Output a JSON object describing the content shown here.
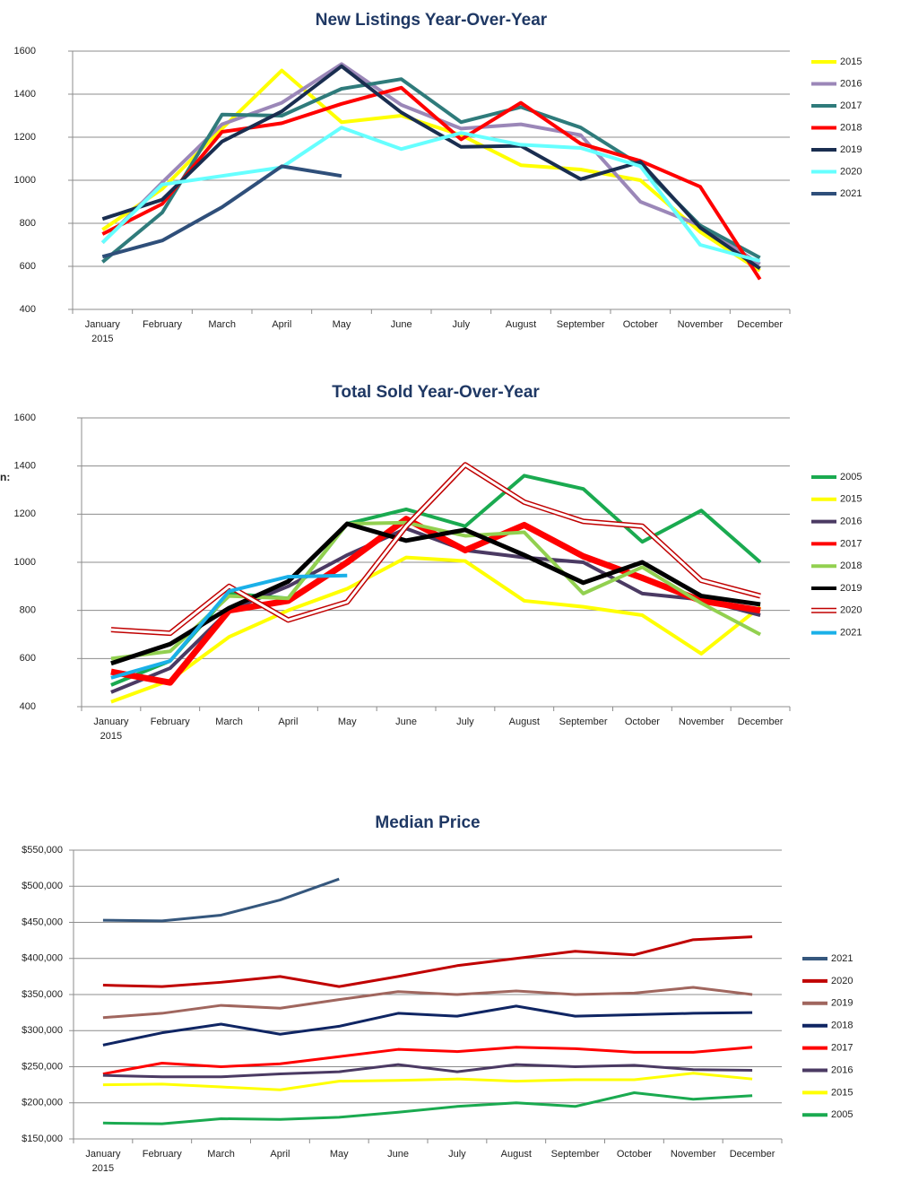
{
  "chart_data": [
    {
      "type": "line",
      "title": "New Listings Year-Over-Year",
      "categories": [
        "January\n2015",
        "February",
        "March",
        "April",
        "May",
        "June",
        "July",
        "August",
        "September",
        "October",
        "November",
        "December"
      ],
      "ylim": [
        400,
        1600
      ],
      "yticks": [
        400,
        600,
        800,
        1000,
        1200,
        1400,
        1600
      ],
      "grid": true,
      "legend": "right",
      "series": [
        {
          "name": "2015",
          "color": "#ffff00",
          "values": [
            770,
            960,
            1240,
            1510,
            1270,
            1300,
            1210,
            1070,
            1050,
            1000,
            760,
            580
          ]
        },
        {
          "name": "2016",
          "color": "#9b87b8",
          "values": [
            710,
            990,
            1260,
            1360,
            1540,
            1350,
            1240,
            1260,
            1210,
            900,
            790,
            610
          ]
        },
        {
          "name": "2017",
          "color": "#2f7b7b",
          "values": [
            620,
            850,
            1305,
            1300,
            1425,
            1470,
            1270,
            1340,
            1245,
            1070,
            790,
            640
          ]
        },
        {
          "name": "2018",
          "color": "#ff0000",
          "values": [
            750,
            890,
            1225,
            1265,
            1355,
            1430,
            1190,
            1360,
            1170,
            1090,
            970,
            540
          ]
        },
        {
          "name": "2019",
          "color": "#1a2e50",
          "values": [
            820,
            910,
            1180,
            1320,
            1530,
            1315,
            1155,
            1160,
            1005,
            1085,
            780,
            590
          ]
        },
        {
          "name": "2020",
          "color": "#66ffff",
          "values": [
            710,
            980,
            1020,
            1060,
            1245,
            1145,
            1220,
            1165,
            1150,
            1065,
            700,
            625
          ]
        },
        {
          "name": "2021",
          "color": "#2f4f7a",
          "values": [
            645,
            720,
            875,
            1065,
            1020,
            null,
            null,
            null,
            null,
            null,
            null,
            null
          ]
        }
      ]
    },
    {
      "type": "line",
      "title": "Total Sold Year-Over-Year",
      "annotation": "n:",
      "categories": [
        "January\n2015",
        "February",
        "March",
        "April",
        "May",
        "June",
        "July",
        "August",
        "September",
        "October",
        "November",
        "December"
      ],
      "ylim": [
        400,
        1600
      ],
      "yticks": [
        400,
        600,
        800,
        1000,
        1200,
        1400,
        1600
      ],
      "grid": true,
      "legend": "right",
      "series": [
        {
          "name": "2005",
          "color": "#1aaa50",
          "values": [
            490,
            590,
            870,
            850,
            1160,
            1220,
            1150,
            1360,
            1305,
            1085,
            1215,
            1000
          ]
        },
        {
          "name": "2015",
          "color": "#ffff00",
          "values": [
            420,
            510,
            690,
            800,
            890,
            1020,
            1005,
            840,
            815,
            780,
            620,
            815
          ]
        },
        {
          "name": "2016",
          "color": "#4b3a63",
          "values": [
            460,
            560,
            800,
            900,
            1030,
            1140,
            1050,
            1020,
            1000,
            870,
            845,
            780
          ]
        },
        {
          "name": "2017",
          "color": "#ff0000",
          "width": 7,
          "values": [
            545,
            500,
            800,
            840,
            1000,
            1180,
            1050,
            1155,
            1025,
            935,
            840,
            800
          ]
        },
        {
          "name": "2018",
          "color": "#92d050",
          "values": [
            600,
            630,
            860,
            850,
            1160,
            1165,
            1110,
            1125,
            870,
            980,
            830,
            700
          ]
        },
        {
          "name": "2019",
          "color": "#000000",
          "width": 5,
          "values": [
            580,
            660,
            810,
            920,
            1160,
            1090,
            1135,
            1030,
            915,
            1000,
            860,
            825
          ]
        },
        {
          "name": "2020",
          "color": "#c00000",
          "outline": true,
          "values": [
            720,
            705,
            900,
            760,
            835,
            1150,
            1405,
            1250,
            1170,
            1150,
            925,
            860
          ]
        },
        {
          "name": "2021",
          "color": "#1ab0e8",
          "values": [
            520,
            590,
            880,
            940,
            945,
            null,
            null,
            null,
            null,
            null,
            null,
            null
          ]
        }
      ]
    },
    {
      "type": "line",
      "title": "Median Price",
      "categories": [
        "January\n2015",
        "February",
        "March",
        "April",
        "May",
        "June",
        "July",
        "August",
        "September",
        "October",
        "November",
        "December"
      ],
      "ylim": [
        150000,
        550000
      ],
      "yticks": [
        {
          "value": 150000,
          "label": "$150,000"
        },
        {
          "value": 200000,
          "label": "$200,000"
        },
        {
          "value": 250000,
          "label": "$250,000"
        },
        {
          "value": 300000,
          "label": "$300,000"
        },
        {
          "value": 350000,
          "label": "$350,000"
        },
        {
          "value": 400000,
          "label": "$400,000"
        },
        {
          "value": 450000,
          "label": "$450,000"
        },
        {
          "value": 500000,
          "label": "$500,000"
        },
        {
          "value": 550000,
          "label": "$550,000"
        }
      ],
      "grid": true,
      "legend": "right",
      "series": [
        {
          "name": "2021",
          "color": "#35577d",
          "values": [
            453000,
            452000,
            460000,
            481000,
            510000,
            null,
            null,
            null,
            null,
            null,
            null,
            null
          ]
        },
        {
          "name": "2020",
          "color": "#c00000",
          "values": [
            363000,
            361000,
            367000,
            375000,
            361000,
            375000,
            390000,
            400000,
            410000,
            405000,
            426000,
            430000
          ]
        },
        {
          "name": "2019",
          "color": "#a0665e",
          "values": [
            318000,
            324000,
            335000,
            331000,
            343000,
            354000,
            350000,
            355000,
            350000,
            352000,
            360000,
            350000
          ]
        },
        {
          "name": "2018",
          "color": "#0f2563",
          "values": [
            280000,
            297000,
            309000,
            295000,
            306000,
            324000,
            320000,
            334000,
            320000,
            322000,
            324000,
            325000
          ]
        },
        {
          "name": "2017",
          "color": "#ff0000",
          "values": [
            240000,
            255000,
            250000,
            254000,
            264000,
            274000,
            271000,
            277000,
            275000,
            270000,
            270000,
            277000
          ]
        },
        {
          "name": "2016",
          "color": "#4b3a63",
          "values": [
            238000,
            236000,
            236000,
            240000,
            243000,
            253000,
            243000,
            253000,
            250000,
            252000,
            246000,
            245000
          ]
        },
        {
          "name": "2015",
          "color": "#ffff00",
          "values": [
            225000,
            226000,
            222000,
            218000,
            230000,
            231000,
            233000,
            230000,
            232000,
            232000,
            241000,
            233000
          ]
        },
        {
          "name": "2005",
          "color": "#1aaa50",
          "values": [
            172000,
            171000,
            178000,
            177000,
            180000,
            187000,
            195000,
            200000,
            195000,
            214000,
            205000,
            210000
          ]
        }
      ]
    }
  ]
}
